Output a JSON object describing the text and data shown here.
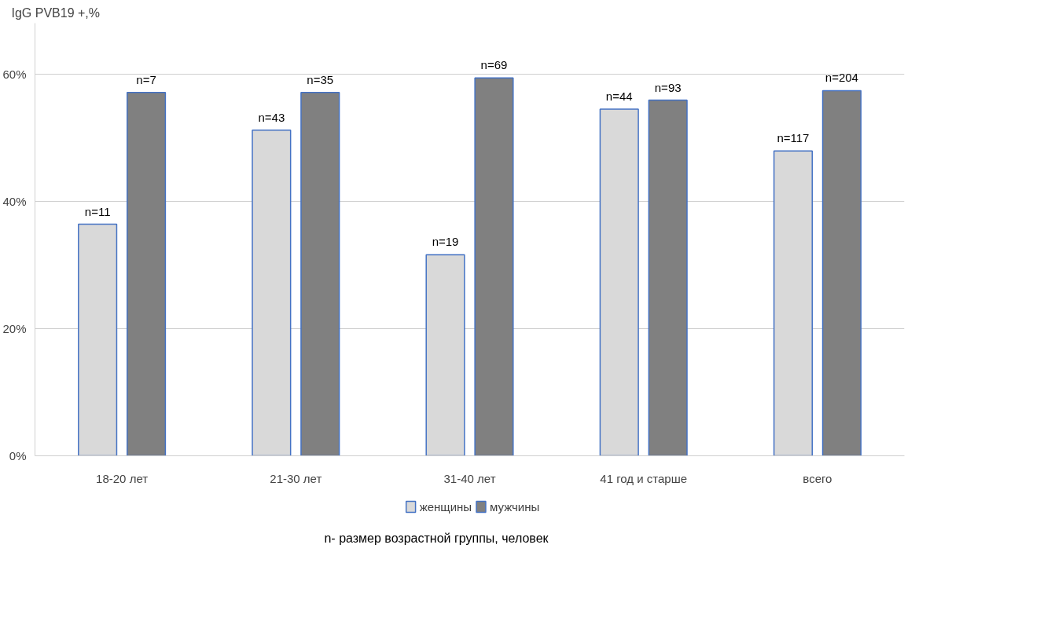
{
  "chart_data": {
    "type": "bar",
    "ylabel": "IgG PVB19 +,%",
    "categories": [
      "18-20 лет",
      "21-30 лет",
      "31-40 лет",
      "41 год и старше",
      "всего"
    ],
    "series": [
      {
        "name": "женщины",
        "color": "#d9d9d9",
        "values": [
          36.4,
          51.2,
          31.6,
          54.5,
          47.9
        ]
      },
      {
        "name": "мужчины",
        "color": "#808080",
        "values": [
          57.1,
          57.1,
          59.4,
          55.9,
          57.4
        ]
      }
    ],
    "ylim": [
      0,
      68
    ],
    "yticks": [
      {
        "value": 0,
        "label": "0%"
      },
      {
        "value": 20,
        "label": "20%"
      },
      {
        "value": 40,
        "label": "40%"
      },
      {
        "value": 60,
        "label": "60%"
      }
    ],
    "grid": "y",
    "legend": "bottom",
    "annotations": [
      "n=11",
      "n=7",
      "n=43",
      "n=35",
      "n=19",
      "n=69",
      "n=44",
      "n=93",
      "n=117",
      "n=204",
      "n- размер возрастной группы, человек"
    ]
  }
}
